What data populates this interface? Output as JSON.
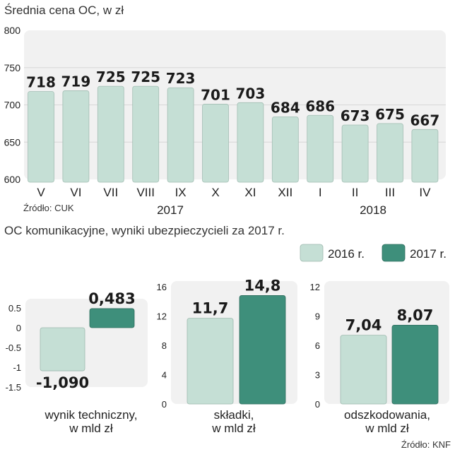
{
  "chart_data": [
    {
      "type": "bar",
      "title": "Średnia cena OC, w zł",
      "categories": [
        "V",
        "VI",
        "VII",
        "VIII",
        "IX",
        "X",
        "XI",
        "XII",
        "I",
        "II",
        "III",
        "IV"
      ],
      "values": [
        718,
        719,
        725,
        725,
        723,
        701,
        703,
        684,
        686,
        673,
        675,
        667
      ],
      "value_labels": [
        "718",
        "719",
        "725",
        "725",
        "723",
        "701",
        "703",
        "684",
        "686",
        "673",
        "675",
        "667"
      ],
      "ylim": [
        600,
        800
      ],
      "yticks": [
        "600",
        "650",
        "700",
        "750",
        "800"
      ],
      "years": [
        "2017",
        "2018"
      ],
      "source": "Źródło: CUK",
      "color": "#c5dfd5"
    },
    {
      "type": "bar",
      "title": "OC komunikacyjne, wyniki ubezpieczycieli za 2017 r.",
      "legend": [
        {
          "name": "2016 r.",
          "color": "#c5dfd5"
        },
        {
          "name": "2017 r.",
          "color": "#3e8f7b"
        }
      ],
      "panels": [
        {
          "label": [
            "wynik techniczny,",
            "w mld zł"
          ],
          "values": [
            -1.09,
            0.483
          ],
          "value_labels": [
            "-1,090",
            "0,483"
          ],
          "ylim": [
            -1.5,
            0.5
          ],
          "yticks": [
            "-1.5",
            "-1",
            "-0.5",
            "0",
            "0.5"
          ]
        },
        {
          "label": [
            "składki,",
            "w mld zł"
          ],
          "values": [
            11.7,
            14.8
          ],
          "value_labels": [
            "11,7",
            "14,8"
          ],
          "ylim": [
            0,
            16
          ],
          "yticks": [
            "0",
            "4",
            "8",
            "12",
            "16"
          ]
        },
        {
          "label": [
            "odszkodowania,",
            "w mld zł"
          ],
          "values": [
            7.04,
            8.07
          ],
          "value_labels": [
            "7,04",
            "8,07"
          ],
          "ylim": [
            0,
            12
          ],
          "yticks": [
            "0",
            "3",
            "6",
            "9",
            "12"
          ]
        }
      ],
      "source": "Źródło: KNF"
    }
  ]
}
